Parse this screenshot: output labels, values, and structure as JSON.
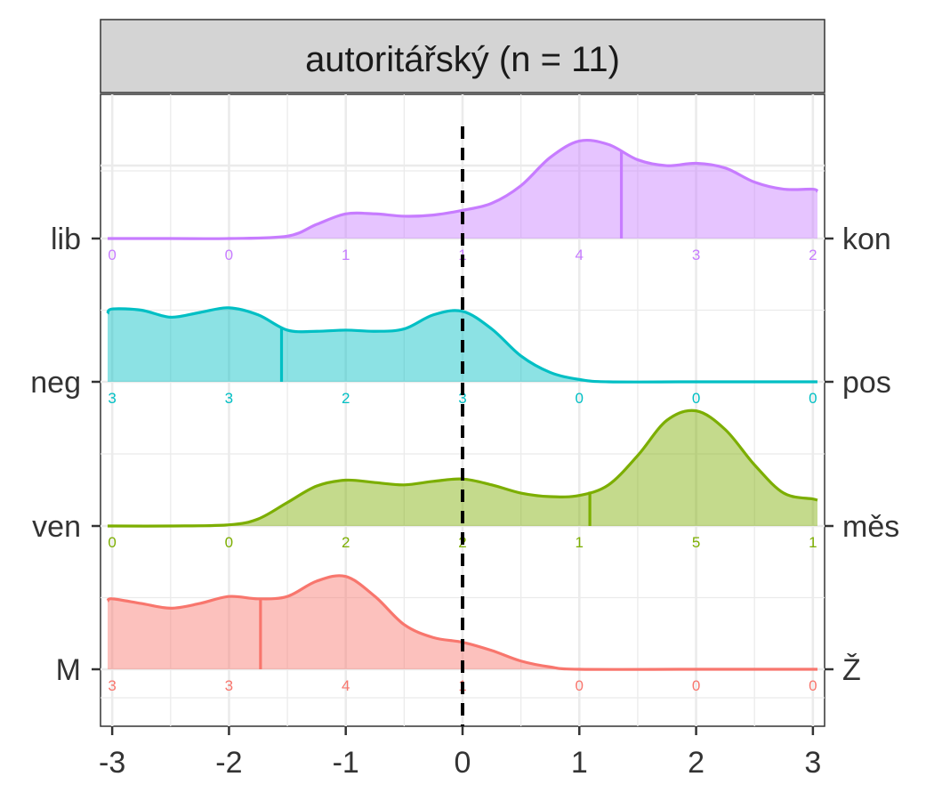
{
  "chart_data": {
    "type": "area",
    "title": "autoritářský (n = 11)",
    "xlabel": "",
    "ylabel": "",
    "xlim": [
      -3.1,
      3.1
    ],
    "x_ticks": [
      -3,
      -2,
      -1,
      0,
      1,
      2,
      3
    ],
    "x_tick_labels": [
      "-3",
      "-2",
      "-1",
      "0",
      "1",
      "2",
      "3"
    ],
    "reference_line": 0,
    "grid": true,
    "count_x": [
      -3,
      -2,
      -1,
      0,
      1,
      2,
      3
    ],
    "series": [
      {
        "left_label": "lib",
        "right_label": "kon",
        "color": "#C77CFF",
        "mean": 1.36,
        "counts": [
          "0",
          "0",
          "1",
          "1",
          "4",
          "3",
          "2"
        ],
        "density": [
          [
            -3.1,
            0.0
          ],
          [
            -2.5,
            0.0
          ],
          [
            -2.0,
            0.0
          ],
          [
            -1.5,
            0.02
          ],
          [
            -1.25,
            0.12
          ],
          [
            -1.0,
            0.21
          ],
          [
            -0.75,
            0.21
          ],
          [
            -0.5,
            0.19
          ],
          [
            -0.25,
            0.2
          ],
          [
            0.0,
            0.24
          ],
          [
            0.25,
            0.3
          ],
          [
            0.5,
            0.45
          ],
          [
            0.75,
            0.69
          ],
          [
            1.0,
            0.83
          ],
          [
            1.25,
            0.8
          ],
          [
            1.5,
            0.67
          ],
          [
            1.75,
            0.62
          ],
          [
            2.0,
            0.64
          ],
          [
            2.25,
            0.6
          ],
          [
            2.5,
            0.48
          ],
          [
            2.75,
            0.42
          ],
          [
            3.0,
            0.42
          ],
          [
            3.1,
            0.4
          ]
        ]
      },
      {
        "left_label": "neg",
        "right_label": "pos",
        "color": "#00BFC4",
        "mean": -1.55,
        "counts": [
          "3",
          "3",
          "2",
          "3",
          "0",
          "0",
          "0"
        ],
        "density": [
          [
            -3.1,
            0.58
          ],
          [
            -3.0,
            0.62
          ],
          [
            -2.75,
            0.61
          ],
          [
            -2.5,
            0.55
          ],
          [
            -2.25,
            0.59
          ],
          [
            -2.0,
            0.63
          ],
          [
            -1.75,
            0.57
          ],
          [
            -1.5,
            0.44
          ],
          [
            -1.25,
            0.43
          ],
          [
            -1.0,
            0.44
          ],
          [
            -0.75,
            0.43
          ],
          [
            -0.5,
            0.45
          ],
          [
            -0.25,
            0.57
          ],
          [
            0.0,
            0.6
          ],
          [
            0.25,
            0.45
          ],
          [
            0.5,
            0.22
          ],
          [
            0.75,
            0.08
          ],
          [
            1.0,
            0.02
          ],
          [
            1.25,
            0.0
          ],
          [
            2.0,
            0.0
          ],
          [
            3.1,
            0.0
          ]
        ]
      },
      {
        "left_label": "ven",
        "right_label": "měs",
        "color": "#7CAE00",
        "mean": 1.09,
        "counts": [
          "0",
          "0",
          "2",
          "2",
          "1",
          "5",
          "1"
        ],
        "density": [
          [
            -3.1,
            0.0
          ],
          [
            -2.5,
            0.0
          ],
          [
            -2.0,
            0.01
          ],
          [
            -1.75,
            0.06
          ],
          [
            -1.5,
            0.2
          ],
          [
            -1.25,
            0.34
          ],
          [
            -1.0,
            0.39
          ],
          [
            -0.75,
            0.37
          ],
          [
            -0.5,
            0.35
          ],
          [
            -0.25,
            0.38
          ],
          [
            0.0,
            0.4
          ],
          [
            0.25,
            0.35
          ],
          [
            0.5,
            0.28
          ],
          [
            0.75,
            0.25
          ],
          [
            1.0,
            0.26
          ],
          [
            1.25,
            0.35
          ],
          [
            1.5,
            0.6
          ],
          [
            1.75,
            0.9
          ],
          [
            2.0,
            0.98
          ],
          [
            2.25,
            0.82
          ],
          [
            2.5,
            0.52
          ],
          [
            2.75,
            0.28
          ],
          [
            3.0,
            0.23
          ],
          [
            3.1,
            0.22
          ]
        ]
      },
      {
        "left_label": "M",
        "right_label": "Ž",
        "color": "#F8766D",
        "mean": -1.73,
        "counts": [
          "3",
          "3",
          "4",
          "1",
          "0",
          "0",
          "0"
        ],
        "density": [
          [
            -3.1,
            0.58
          ],
          [
            -3.0,
            0.6
          ],
          [
            -2.75,
            0.56
          ],
          [
            -2.5,
            0.52
          ],
          [
            -2.25,
            0.56
          ],
          [
            -2.0,
            0.62
          ],
          [
            -1.75,
            0.6
          ],
          [
            -1.5,
            0.62
          ],
          [
            -1.25,
            0.75
          ],
          [
            -1.0,
            0.79
          ],
          [
            -0.75,
            0.62
          ],
          [
            -0.5,
            0.38
          ],
          [
            -0.25,
            0.27
          ],
          [
            0.0,
            0.23
          ],
          [
            0.25,
            0.16
          ],
          [
            0.5,
            0.07
          ],
          [
            0.75,
            0.02
          ],
          [
            1.0,
            0.0
          ],
          [
            2.0,
            0.0
          ],
          [
            3.1,
            0.0
          ]
        ]
      }
    ]
  }
}
